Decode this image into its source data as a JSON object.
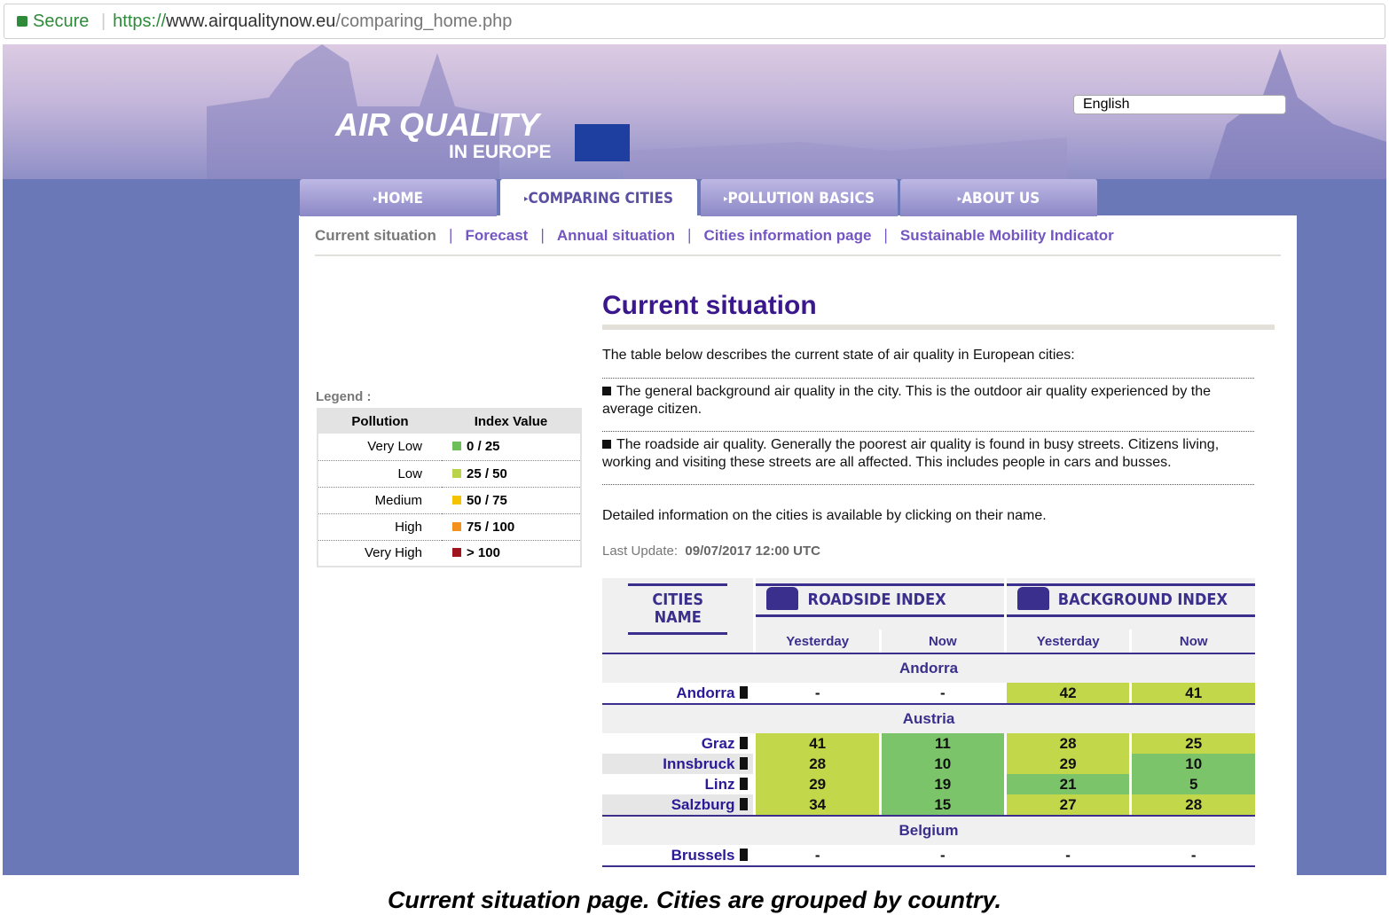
{
  "browser": {
    "secure": "Secure",
    "url_scheme": "https://",
    "url_host": "www.airqualitynow.eu",
    "url_path": "/comparing_home.php"
  },
  "header": {
    "logo_line1": "AIR QUALITY",
    "logo_line2": "IN EUROPE",
    "language": "English"
  },
  "tabs": [
    "HOME",
    "COMPARING CITIES",
    "POLLUTION BASICS",
    "ABOUT US"
  ],
  "subnav": [
    "Current situation",
    "Forecast",
    "Annual situation",
    "Cities information page",
    "Sustainable Mobility Indicator"
  ],
  "legend": {
    "title": "Legend :",
    "headers": [
      "Pollution",
      "Index Value"
    ],
    "rows": [
      {
        "level": "Very Low",
        "range": "0 / 25",
        "color": "#6ebf5a"
      },
      {
        "level": "Low",
        "range": "25 / 50",
        "color": "#b9d44a"
      },
      {
        "level": "Medium",
        "range": "50 / 75",
        "color": "#f5c200"
      },
      {
        "level": "High",
        "range": "75 / 100",
        "color": "#f4901e"
      },
      {
        "level": "Very High",
        "range": "> 100",
        "color": "#a0141e"
      }
    ]
  },
  "content": {
    "title": "Current situation",
    "intro": "The table below describes the current state of air quality in European cities:",
    "bullets": [
      "The general background air quality in the city. This is the outdoor air quality experienced by the average citizen.",
      "The roadside air quality. Generally the poorest air quality is found in busy streets. Citizens living, working and visiting these streets are all affected. This includes people in cars and busses."
    ],
    "detail": "Detailed information on the cities is available by clicking on their name.",
    "last_update_label": "Last Update:",
    "last_update": "09/07/2017 12:00 UTC"
  },
  "table": {
    "name_header": "CITIES NAME",
    "roadside_header": "ROADSIDE INDEX",
    "background_header": "BACKGROUND INDEX",
    "subheaders": [
      "Yesterday",
      "Now",
      "Yesterday",
      "Now"
    ],
    "groups": [
      {
        "country": "Andorra",
        "cities": [
          {
            "name": "Andorra",
            "values": [
              "-",
              "-",
              42,
              41
            ],
            "colors": [
              null,
              null,
              "#c3d74b",
              "#c3d74b"
            ]
          }
        ]
      },
      {
        "country": "Austria",
        "cities": [
          {
            "name": "Graz",
            "values": [
              41,
              11,
              28,
              25
            ],
            "colors": [
              "#c3d74b",
              "#7bc46a",
              "#c3d74b",
              "#c3d74b"
            ]
          },
          {
            "name": "Innsbruck",
            "values": [
              28,
              10,
              29,
              10
            ],
            "colors": [
              "#c3d74b",
              "#7bc46a",
              "#c3d74b",
              "#7bc46a"
            ]
          },
          {
            "name": "Linz",
            "values": [
              29,
              19,
              21,
              5
            ],
            "colors": [
              "#c3d74b",
              "#7bc46a",
              "#7bc46a",
              "#7bc46a"
            ]
          },
          {
            "name": "Salzburg",
            "values": [
              34,
              15,
              27,
              28
            ],
            "colors": [
              "#c3d74b",
              "#7bc46a",
              "#c3d74b",
              "#c3d74b"
            ]
          }
        ]
      },
      {
        "country": "Belgium",
        "cities": [
          {
            "name": "Brussels",
            "values": [
              "-",
              "-",
              "-",
              "-"
            ],
            "colors": [
              null,
              null,
              null,
              null
            ]
          }
        ]
      }
    ]
  },
  "caption": "Current situation page. Cities are grouped by country."
}
